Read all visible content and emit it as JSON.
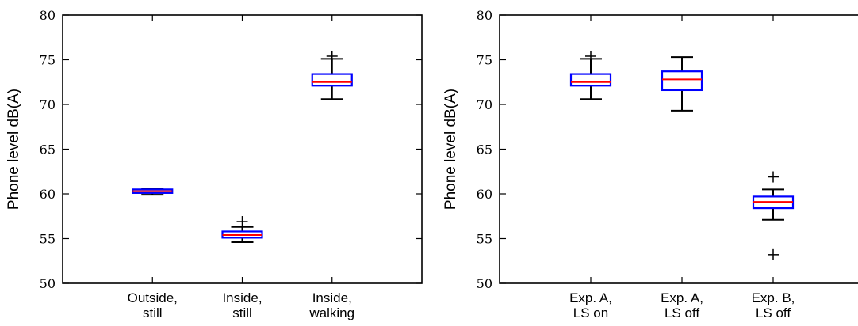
{
  "chart_data": [
    {
      "type": "box",
      "title": "",
      "xlabel": "",
      "ylabel": "Phone level dB(A)",
      "ylim": [
        50,
        80
      ],
      "yticks": [
        "50",
        "55",
        "60",
        "65",
        "70",
        "75",
        "80"
      ],
      "grid": false,
      "categories": [
        [
          "Outside,",
          "still"
        ],
        [
          "Inside,",
          "still"
        ],
        [
          "Inside,",
          "walking"
        ]
      ],
      "boxes": [
        {
          "whisker_low": 59.9,
          "q1": 60.1,
          "median": 60.3,
          "q3": 60.5,
          "whisker_high": 60.6,
          "outliers": []
        },
        {
          "whisker_low": 54.6,
          "q1": 55.1,
          "median": 55.4,
          "q3": 55.8,
          "whisker_high": 56.3,
          "outliers": [
            56.9
          ]
        },
        {
          "whisker_low": 70.6,
          "q1": 72.1,
          "median": 72.5,
          "q3": 73.4,
          "whisker_high": 75.1,
          "outliers": [
            75.4
          ]
        }
      ]
    },
    {
      "type": "box",
      "title": "",
      "xlabel": "",
      "ylabel": "Phone level dB(A)",
      "ylim": [
        50,
        80
      ],
      "yticks": [
        "50",
        "55",
        "60",
        "65",
        "70",
        "75",
        "80"
      ],
      "grid": false,
      "categories": [
        [
          "Exp. A,",
          "LS on"
        ],
        [
          "Exp. A,",
          "LS off"
        ],
        [
          "Exp. B,",
          "LS off"
        ]
      ],
      "boxes": [
        {
          "whisker_low": 70.6,
          "q1": 72.1,
          "median": 72.5,
          "q3": 73.4,
          "whisker_high": 75.1,
          "outliers": [
            75.4
          ]
        },
        {
          "whisker_low": 69.3,
          "q1": 71.6,
          "median": 72.8,
          "q3": 73.7,
          "whisker_high": 75.3,
          "outliers": []
        },
        {
          "whisker_low": 57.1,
          "q1": 58.4,
          "median": 59.1,
          "q3": 59.7,
          "whisker_high": 60.5,
          "outliers": [
            61.9,
            53.2
          ]
        }
      ]
    }
  ],
  "colors": {
    "box": "#0000ff",
    "median": "#ff0000",
    "whisker": "#000000",
    "axis": "#000000"
  }
}
